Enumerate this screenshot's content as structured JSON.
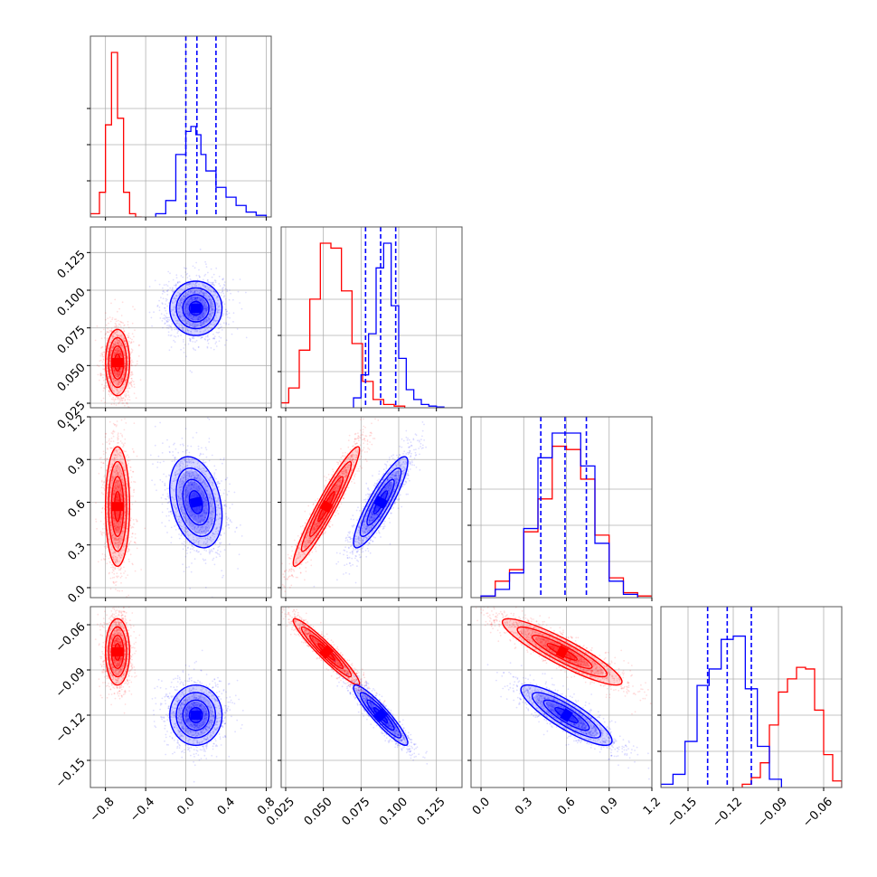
{
  "figure": {
    "colors": {
      "series_a": "#ff0000",
      "series_b": "#0000ff",
      "grid": "#b0b0b0",
      "frame": "#555555"
    }
  },
  "chart_data": {
    "type": "corner",
    "grid": true,
    "params": 4,
    "ranges": [
      [
        -0.95,
        0.85
      ],
      [
        0.022,
        0.142
      ],
      [
        -0.07,
        1.2
      ],
      [
        -0.168,
        -0.048
      ]
    ],
    "ticks": [
      [
        -0.8,
        -0.4,
        0.0,
        0.4,
        0.8
      ],
      [
        0.025,
        0.05,
        0.075,
        0.1,
        0.125
      ],
      [
        0.0,
        0.3,
        0.6,
        0.9,
        1.2
      ],
      [
        -0.15,
        -0.12,
        -0.09,
        -0.06
      ]
    ],
    "tick_labels": [
      [
        "−0.8",
        "−0.4",
        "0.0",
        "0.4",
        "0.8"
      ],
      [
        "0.025",
        "0.050",
        "0.075",
        "0.100",
        "0.125"
      ],
      [
        "0.0",
        "0.3",
        "0.6",
        "0.9",
        "1.2"
      ],
      [
        "−0.15",
        "−0.12",
        "−0.09",
        "−0.06"
      ]
    ],
    "series": [
      {
        "color": "#ff0000",
        "means": [
          -0.68,
          0.052,
          0.57,
          -0.078
        ],
        "sds": [
          0.06,
          0.011,
          0.21,
          0.011
        ],
        "corr": [
          [
            1,
            0,
            0,
            0
          ],
          [
            0,
            1,
            0.95,
            -0.95
          ],
          [
            0,
            0.95,
            1,
            -0.9
          ],
          [
            0,
            -0.95,
            -0.9,
            1
          ]
        ],
        "quantiles": null,
        "histograms": [
          {
            "edges": [
              -0.95,
              -0.86,
              -0.8,
              -0.74,
              -0.68,
              -0.62,
              -0.56,
              -0.5,
              -0.44
            ],
            "counts": [
              0.02,
              0.15,
              0.56,
              1.0,
              0.6,
              0.15,
              0.02,
              0.0
            ]
          },
          {
            "edges": [
              0.02,
              0.027,
              0.034,
              0.041,
              0.048,
              0.055,
              0.062,
              0.069,
              0.076,
              0.083,
              0.09,
              0.097,
              0.104
            ],
            "counts": [
              0.03,
              0.12,
              0.35,
              0.66,
              1.0,
              0.97,
              0.71,
              0.39,
              0.16,
              0.05,
              0.02,
              0.01
            ]
          },
          {
            "edges": [
              0.0,
              0.1,
              0.2,
              0.3,
              0.4,
              0.5,
              0.6,
              0.7,
              0.8,
              0.9,
              1.0,
              1.1,
              1.2
            ],
            "counts": [
              0.01,
              0.1,
              0.17,
              0.4,
              0.6,
              0.92,
              0.9,
              0.72,
              0.38,
              0.12,
              0.03,
              0.01
            ]
          },
          {
            "edges": [
              -0.114,
              -0.108,
              -0.102,
              -0.096,
              -0.09,
              -0.084,
              -0.078,
              -0.072,
              -0.066,
              -0.06,
              -0.054,
              -0.048
            ],
            "counts": [
              0.02,
              0.06,
              0.15,
              0.38,
              0.58,
              0.66,
              0.73,
              0.72,
              0.47,
              0.2,
              0.04
            ]
          }
        ]
      },
      {
        "color": "#0000ff",
        "means": [
          0.1,
          0.088,
          0.6,
          -0.12
        ],
        "sds": [
          0.13,
          0.009,
          0.16,
          0.01
        ],
        "corr": [
          [
            1,
            0,
            -0.3,
            0
          ],
          [
            0,
            1,
            0.88,
            -0.92
          ],
          [
            -0.3,
            0.88,
            1,
            -0.85
          ],
          [
            0,
            -0.92,
            -0.85,
            1
          ]
        ],
        "quantiles": [
          [
            0.0,
            0.11,
            0.3
          ],
          [
            0.078,
            0.088,
            0.098
          ],
          [
            0.42,
            0.59,
            0.74
          ],
          [
            -0.137,
            -0.124,
            -0.108
          ]
        ],
        "histograms": [
          {
            "edges": [
              -0.3,
              -0.2,
              -0.1,
              0.0,
              0.05,
              0.1,
              0.15,
              0.2,
              0.3,
              0.4,
              0.5,
              0.6,
              0.7,
              0.8
            ],
            "counts": [
              0.02,
              0.1,
              0.38,
              0.52,
              0.55,
              0.5,
              0.38,
              0.28,
              0.18,
              0.12,
              0.07,
              0.03,
              0.01
            ]
          },
          {
            "edges": [
              0.07,
              0.075,
              0.08,
              0.085,
              0.09,
              0.095,
              0.1,
              0.105,
              0.11,
              0.115,
              0.12,
              0.125,
              0.13
            ],
            "counts": [
              0.06,
              0.2,
              0.45,
              0.85,
              1.0,
              0.62,
              0.3,
              0.11,
              0.05,
              0.02,
              0.01,
              0.005
            ]
          },
          {
            "edges": [
              0.0,
              0.1,
              0.2,
              0.3,
              0.4,
              0.5,
              0.6,
              0.7,
              0.8,
              0.9,
              1.0,
              1.1
            ],
            "counts": [
              0.01,
              0.05,
              0.15,
              0.42,
              0.85,
              1.0,
              1.0,
              0.8,
              0.33,
              0.1,
              0.02
            ]
          },
          {
            "edges": [
              -0.168,
              -0.16,
              -0.152,
              -0.144,
              -0.136,
              -0.128,
              -0.12,
              -0.112,
              -0.104,
              -0.096,
              -0.088
            ],
            "counts": [
              0.02,
              0.08,
              0.28,
              0.62,
              0.72,
              0.9,
              0.92,
              0.6,
              0.25,
              0.05
            ]
          }
        ]
      }
    ]
  }
}
